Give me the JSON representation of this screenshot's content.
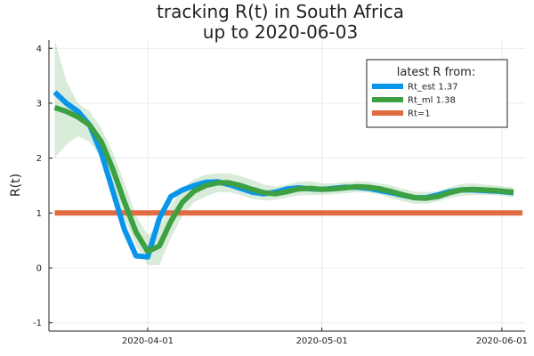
{
  "chart_data": {
    "type": "line",
    "title": "tracking R(t) in South Africa",
    "subtitle": "up to 2020-06-03",
    "xlabel": "",
    "ylabel": "R(t)",
    "xlim": [
      "2020-03-15",
      "2020-06-05"
    ],
    "ylim": [
      -1.15,
      4.15
    ],
    "xticks": [
      {
        "date": "2020-04-01",
        "label": "2020-04-01"
      },
      {
        "date": "2020-05-01",
        "label": "2020-05-01"
      },
      {
        "date": "2020-06-01",
        "label": "2020-06-01"
      }
    ],
    "yticks": [
      -1,
      0,
      1,
      2,
      3,
      4
    ],
    "yticklabels": [
      "-1",
      "0",
      "1",
      "2",
      "3",
      "4"
    ],
    "grid": true,
    "legend": {
      "title": "latest R from:",
      "position": "top-right"
    },
    "x": [
      "2020-03-16",
      "2020-03-18",
      "2020-03-20",
      "2020-03-22",
      "2020-03-24",
      "2020-03-26",
      "2020-03-28",
      "2020-03-30",
      "2020-04-01",
      "2020-04-03",
      "2020-04-05",
      "2020-04-07",
      "2020-04-09",
      "2020-04-11",
      "2020-04-13",
      "2020-04-15",
      "2020-04-17",
      "2020-04-19",
      "2020-04-21",
      "2020-04-23",
      "2020-04-25",
      "2020-04-27",
      "2020-04-29",
      "2020-05-01",
      "2020-05-03",
      "2020-05-05",
      "2020-05-07",
      "2020-05-09",
      "2020-05-11",
      "2020-05-13",
      "2020-05-15",
      "2020-05-17",
      "2020-05-19",
      "2020-05-21",
      "2020-05-23",
      "2020-05-25",
      "2020-05-27",
      "2020-05-29",
      "2020-05-31",
      "2020-06-02",
      "2020-06-03"
    ],
    "series": [
      {
        "name": "Rt_est 1.37",
        "color": "#0996ea",
        "values": [
          3.2,
          3.0,
          2.85,
          2.6,
          2.1,
          1.4,
          0.7,
          0.22,
          0.2,
          0.9,
          1.3,
          1.42,
          1.5,
          1.56,
          1.57,
          1.52,
          1.45,
          1.38,
          1.35,
          1.38,
          1.44,
          1.46,
          1.44,
          1.43,
          1.45,
          1.47,
          1.47,
          1.45,
          1.41,
          1.37,
          1.32,
          1.28,
          1.28,
          1.33,
          1.39,
          1.42,
          1.42,
          1.41,
          1.4,
          1.38,
          1.37
        ]
      },
      {
        "name": "Rt_ml 1.38",
        "color": "#3da043",
        "values": [
          2.92,
          2.85,
          2.75,
          2.6,
          2.3,
          1.8,
          1.2,
          0.65,
          0.3,
          0.4,
          0.85,
          1.2,
          1.4,
          1.5,
          1.55,
          1.55,
          1.5,
          1.43,
          1.37,
          1.35,
          1.39,
          1.44,
          1.45,
          1.43,
          1.44,
          1.46,
          1.48,
          1.47,
          1.44,
          1.39,
          1.33,
          1.28,
          1.27,
          1.3,
          1.37,
          1.42,
          1.43,
          1.42,
          1.41,
          1.39,
          1.38
        ]
      },
      {
        "name": "Rt=1",
        "color": "#e06c42",
        "values": [
          1,
          1,
          1,
          1,
          1,
          1,
          1,
          1,
          1,
          1,
          1,
          1,
          1,
          1,
          1,
          1,
          1,
          1,
          1,
          1,
          1,
          1,
          1,
          1,
          1,
          1,
          1,
          1,
          1,
          1,
          1,
          1,
          1,
          1,
          1,
          1,
          1,
          1,
          1,
          1,
          1
        ]
      }
    ],
    "band": {
      "color": "#3da043",
      "lower": [
        2.0,
        2.25,
        2.4,
        2.3,
        2.0,
        1.5,
        0.9,
        0.4,
        0.05,
        0.05,
        0.55,
        0.95,
        1.2,
        1.3,
        1.38,
        1.38,
        1.33,
        1.26,
        1.23,
        1.24,
        1.28,
        1.32,
        1.33,
        1.33,
        1.34,
        1.36,
        1.38,
        1.37,
        1.33,
        1.27,
        1.21,
        1.17,
        1.17,
        1.21,
        1.27,
        1.31,
        1.33,
        1.33,
        1.32,
        1.3,
        1.29
      ],
      "upper": [
        4.15,
        3.4,
        3.0,
        2.85,
        2.55,
        2.1,
        1.55,
        0.95,
        0.6,
        0.75,
        1.15,
        1.45,
        1.62,
        1.7,
        1.72,
        1.72,
        1.67,
        1.6,
        1.52,
        1.48,
        1.52,
        1.57,
        1.58,
        1.54,
        1.54,
        1.56,
        1.58,
        1.57,
        1.54,
        1.5,
        1.44,
        1.39,
        1.38,
        1.4,
        1.47,
        1.53,
        1.54,
        1.52,
        1.5,
        1.48,
        1.47
      ]
    }
  }
}
